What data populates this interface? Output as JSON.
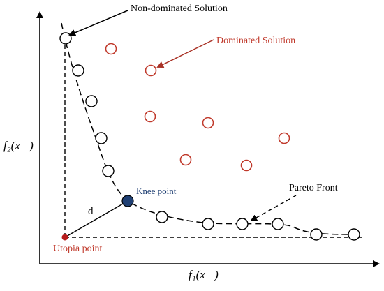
{
  "labels": {
    "non_dominated": "Non-dominated Solution",
    "dominated": "Dominated Solution",
    "knee": "Knee point",
    "pareto": "Pareto Front",
    "utopia": "Utopia point",
    "d": "d",
    "x_axis": "f₁(x⃗)",
    "y_axis": "f₂(x⃗)"
  },
  "colors": {
    "axis": "#000000",
    "dominated_stroke": "#c0392b",
    "dominated_label": "#c0392b",
    "knee_fill": "#1f3f73",
    "utopia_fill": "#b71c1c",
    "front_stroke": "#000000"
  }
}
